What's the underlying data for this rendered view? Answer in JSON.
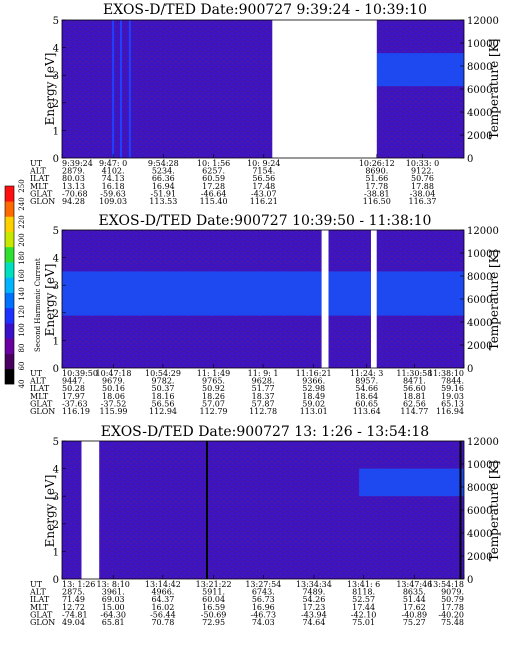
{
  "figure": {
    "colorbar": {
      "label": "Second Harmonic Current",
      "ticks": [
        "40",
        "60",
        "80",
        "100",
        "120",
        "140",
        "160",
        "180",
        "200",
        "220",
        "240",
        "250"
      ],
      "colors": [
        "#000000",
        "#4a0060",
        "#6a00a0",
        "#3a10c8",
        "#1e32ff",
        "#0070ff",
        "#00b4ff",
        "#00e0c0",
        "#30e030",
        "#c8e800",
        "#ffd000",
        "#ff6a00",
        "#ff1010"
      ]
    },
    "background_color": "#3c14c0",
    "band_color": "#1e48f0",
    "speckle_color": "#6a1a70"
  },
  "chart_data": [
    {
      "type": "heatmap",
      "title": "EXOS-D/TED   Date:900727   9:39:24 - 10:39:10",
      "ylabel": "Energy [eV]",
      "y2label": "Temperature [K]",
      "ylim": [
        0,
        5
      ],
      "y2lim": [
        0,
        12000
      ],
      "yticks": [
        "0",
        "1",
        "2",
        "3",
        "4",
        "5"
      ],
      "y2ticks": [
        "0",
        "2000",
        "4000",
        "6000",
        "8000",
        "10000",
        "12000"
      ],
      "time_range": [
        "9:39:24",
        "10:39:10"
      ],
      "data_gaps": [
        [
          "10:10:40",
          "10:26:12"
        ]
      ],
      "temperature_band": {
        "from": "10:26:12",
        "to": "10:39:10",
        "energy_low": 2.6,
        "energy_high": 3.8
      },
      "spikes": [
        {
          "time": "9:47:0",
          "color": "#2040ff"
        },
        {
          "time": "9:48:10",
          "color": "#2040ff"
        },
        {
          "time": "9:49:30",
          "color": "#2040ff"
        }
      ],
      "orbit": {
        "labels": [
          "UT",
          "ALT",
          "ILAT",
          "MLT",
          "GLAT",
          "GLON"
        ],
        "columns": [
          {
            "ut": "9:39:24",
            "alt": "2879.",
            "ilat": "80.03",
            "mlt": "13.13",
            "glat": "-70.68",
            "glon": "94.28"
          },
          {
            "ut": "9:47: 0",
            "alt": "4102.",
            "ilat": "74.13",
            "mlt": "16.18",
            "glat": "-59.63",
            "glon": "109.03"
          },
          {
            "ut": "9:54:28",
            "alt": "5234.",
            "ilat": "66.36",
            "mlt": "16.94",
            "glat": "-51.91",
            "glon": "113.53"
          },
          {
            "ut": "10: 1:56",
            "alt": "6257.",
            "ilat": "60.59",
            "mlt": "17.28",
            "glat": "-46.64",
            "glon": "115.40"
          },
          {
            "ut": "10: 9:24",
            "alt": "7154.",
            "ilat": "56.56",
            "mlt": "17.48",
            "glat": "-43.07",
            "glon": "116.21"
          },
          {
            "ut": "10:26:12",
            "alt": "8690.",
            "ilat": "51.66",
            "mlt": "17.78",
            "glat": "-38.81",
            "glon": "116.50"
          },
          {
            "ut": "10:33: 0",
            "alt": "9122.",
            "ilat": "50.76",
            "mlt": "17.88",
            "glat": "-38.04",
            "glon": "116.37"
          }
        ]
      }
    },
    {
      "type": "heatmap",
      "title": "EXOS-D/TED   Date:900727   10:39:50 - 11:38:10",
      "ylabel": "Energy [eV]",
      "y2label": "Temperature [K]",
      "ylim": [
        0,
        5
      ],
      "y2lim": [
        0,
        12000
      ],
      "yticks": [
        "0",
        "1",
        "2",
        "3",
        "4",
        "5"
      ],
      "y2ticks": [
        "0",
        "2000",
        "4000",
        "6000",
        "8000",
        "10000",
        "12000"
      ],
      "time_range": [
        "10:39:50",
        "11:38:10"
      ],
      "data_gaps": [
        [
          "11:17:30",
          "11:18:30"
        ],
        [
          "11:24:40",
          "11:25:30"
        ]
      ],
      "temperature_band": {
        "from": "10:39:50",
        "to": "11:38:10",
        "energy_low": 1.9,
        "energy_high": 3.5
      },
      "spikes": [],
      "orbit": {
        "labels": [
          "UT",
          "ALT",
          "ILAT",
          "MLT",
          "GLAT",
          "GLON"
        ],
        "columns": [
          {
            "ut": "10:39:50",
            "alt": "9447.",
            "ilat": "50.28",
            "mlt": "17.97",
            "glat": "-37.63",
            "glon": "116.19"
          },
          {
            "ut": "10:47:18",
            "alt": "9679.",
            "ilat": "50.16",
            "mlt": "18.06",
            "glat": "-37.52",
            "glon": "115.99"
          },
          {
            "ut": "10:54:29",
            "alt": "9782.",
            "ilat": "50.37",
            "mlt": "18.16",
            "glat": "56.56",
            "glon": "112.94"
          },
          {
            "ut": "11: 1:49",
            "alt": "9765.",
            "ilat": "50.92",
            "mlt": "18.26",
            "glat": "57.07",
            "glon": "112.79"
          },
          {
            "ut": "11: 9: 1",
            "alt": "9628.",
            "ilat": "51.77",
            "mlt": "18.37",
            "glat": "57.87",
            "glon": "112.78"
          },
          {
            "ut": "11:16:21",
            "alt": "9366.",
            "ilat": "52.98",
            "mlt": "18.49",
            "glat": "59.02",
            "glon": "113.01"
          },
          {
            "ut": "11:24: 3",
            "alt": "8957.",
            "ilat": "54.66",
            "mlt": "18.64",
            "glat": "60.65",
            "glon": "113.64"
          },
          {
            "ut": "11:30:58",
            "alt": "8471.",
            "ilat": "56.60",
            "mlt": "18.81",
            "glat": "62.56",
            "glon": "114.77"
          },
          {
            "ut": "11:38:10",
            "alt": "7844.",
            "ilat": "59.16",
            "mlt": "19.03",
            "glat": "65.13",
            "glon": "116.94"
          }
        ]
      }
    },
    {
      "type": "heatmap",
      "title": "EXOS-D/TED   Date:900727   13: 1:26 - 13:54:18",
      "ylabel": "Energy [eV]",
      "y2label": "Temperature [K]",
      "ylim": [
        0,
        5
      ],
      "y2lim": [
        0,
        12000
      ],
      "yticks": [
        "0",
        "1",
        "2",
        "3",
        "4",
        "5"
      ],
      "y2ticks": [
        "0",
        "2000",
        "4000",
        "6000",
        "8000",
        "10000",
        "12000"
      ],
      "time_range": [
        "13:1:26",
        "13:54:18"
      ],
      "data_gaps": [
        [
          "13:4:0",
          "13:6:20"
        ]
      ],
      "temperature_band": {
        "from": "13:40:30",
        "to": "13:54:18",
        "energy_low": 3.0,
        "energy_high": 4.0
      },
      "spikes": [
        {
          "time": "13:20:30",
          "color": "#000000"
        },
        {
          "time": "13:53:50",
          "color": "#000000"
        }
      ],
      "orbit": {
        "labels": [
          "UT",
          "ALT",
          "ILAT",
          "MLT",
          "GLAT",
          "GLON"
        ],
        "columns": [
          {
            "ut": "13: 1:26",
            "alt": "2875.",
            "ilat": "71.49",
            "mlt": "12.72",
            "glat": "-74.81",
            "glon": "49.04"
          },
          {
            "ut": "13: 8:10",
            "alt": "3961.",
            "ilat": "69.03",
            "mlt": "15.00",
            "glat": "-64.30",
            "glon": "65.81"
          },
          {
            "ut": "13:14:42",
            "alt": "4966.",
            "ilat": "64.37",
            "mlt": "16.02",
            "glat": "-56.44",
            "glon": "70.78"
          },
          {
            "ut": "13:21:22",
            "alt": "5911.",
            "ilat": "60.04",
            "mlt": "16.59",
            "glat": "-50.69",
            "glon": "72.95"
          },
          {
            "ut": "13:27:54",
            "alt": "6743.",
            "ilat": "56.73",
            "mlt": "16.96",
            "glat": "-46.73",
            "glon": "74.03"
          },
          {
            "ut": "13:34:34",
            "alt": "7489.",
            "ilat": "54.26",
            "mlt": "17.23",
            "glat": "-43.94",
            "glon": "74.64"
          },
          {
            "ut": "13:41: 6",
            "alt": "8118.",
            "ilat": "52.57",
            "mlt": "17.44",
            "glat": "-42.10",
            "glon": "75.01"
          },
          {
            "ut": "13:47:46",
            "alt": "8635.",
            "ilat": "51.44",
            "mlt": "17.62",
            "glat": "-40.89",
            "glon": "75.27"
          },
          {
            "ut": "13:54:18",
            "alt": "9079.",
            "ilat": "50.79",
            "mlt": "17.78",
            "glat": "-40.20",
            "glon": "75.48"
          }
        ]
      }
    }
  ]
}
